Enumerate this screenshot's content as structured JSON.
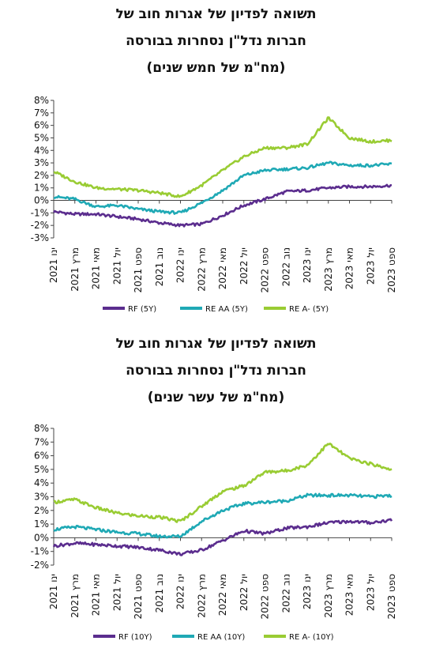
{
  "colors": {
    "rf": "#5b2d8e",
    "re_aa": "#1fa9b5",
    "re_a": "#99cc33"
  },
  "chart1_title": {
    "line1": "תשואה לפדיון של אגרות חוב של",
    "line2": "חברות נדל\"ן נסחרות בבורסה",
    "line3": "(מח\"מ של חמש שנים)"
  },
  "chart2_title": {
    "line1": "תשואה לפדיון של אגרות חוב של",
    "line2": "חברות נדל\"ן נסחרות בבורסה",
    "line3": "(מח\"מ של עשר שנים)"
  },
  "chart_data": [
    {
      "type": "line",
      "title": "תשואה לפדיון של אגרות חוב של חברות נדל\"ן נסחרות בבורסה (מח\"מ של חמש שנים)",
      "ylim": [
        -3,
        8
      ],
      "yticks": [
        "-3%",
        "-2%",
        "-1%",
        "0%",
        "1%",
        "2%",
        "3%",
        "4%",
        "5%",
        "6%",
        "7%",
        "8%"
      ],
      "categories": [
        "ינו 2021",
        "מרץ 2021",
        "מאי 2021",
        "יול 2021",
        "ספט 2021",
        "נוב 2021",
        "ינו 2022",
        "מרץ 2022",
        "מאי 2022",
        "יול 2022",
        "ספט 2022",
        "נוב 2022",
        "ינו 2023",
        "מרץ 2023",
        "מאי 2023",
        "יול 2023",
        "ספט 2023"
      ],
      "grid": false,
      "legend_position": "bottom",
      "series": [
        {
          "name": "RF (5Y)",
          "color": "#5b2d8e",
          "values": [
            -0.9,
            -1.1,
            -1.1,
            -1.3,
            -1.5,
            -1.8,
            -2.0,
            -1.9,
            -1.2,
            -0.4,
            0.1,
            0.7,
            0.8,
            1.0,
            1.1,
            1.1,
            1.2
          ]
        },
        {
          "name": "RE AA (5Y)",
          "color": "#1fa9b5",
          "values": [
            0.3,
            0.1,
            -0.5,
            -0.4,
            -0.7,
            -0.9,
            -1.0,
            -0.2,
            0.8,
            2.0,
            2.4,
            2.5,
            2.6,
            3.0,
            2.8,
            2.8,
            2.9
          ]
        },
        {
          "name": "RE A- (5Y)",
          "color": "#99cc33",
          "values": [
            2.3,
            1.5,
            1.0,
            0.9,
            0.8,
            0.6,
            0.3,
            1.2,
            2.4,
            3.5,
            4.2,
            4.2,
            4.5,
            6.6,
            5.0,
            4.7,
            4.8
          ]
        }
      ]
    },
    {
      "type": "line",
      "title": "תשואה לפדיון של אגרות חוב של חברות נדל\"ן נסחרות בבורסה (מח\"מ של עשר שנים)",
      "ylim": [
        -2,
        8
      ],
      "yticks": [
        "-2%",
        "-1%",
        "0%",
        "1%",
        "2%",
        "3%",
        "4%",
        "5%",
        "6%",
        "7%",
        "8%"
      ],
      "categories": [
        "ינו 2021",
        "מרץ 2021",
        "מאי 2021",
        "יול 2021",
        "ספט 2021",
        "נוב 2021",
        "ינו 2022",
        "מרץ 2022",
        "מאי 2022",
        "יול 2022",
        "ספט 2022",
        "נוב 2022",
        "ינו 2023",
        "מרץ 2023",
        "מאי 2023",
        "יול 2023",
        "ספט 2023"
      ],
      "grid": false,
      "legend_position": "bottom",
      "series": [
        {
          "name": "RF (10Y)",
          "color": "#5b2d8e",
          "values": [
            -0.6,
            -0.4,
            -0.5,
            -0.6,
            -0.7,
            -0.9,
            -1.2,
            -0.9,
            -0.2,
            0.5,
            0.3,
            0.7,
            0.8,
            1.1,
            1.2,
            1.1,
            1.3
          ]
        },
        {
          "name": "RE AA (10Y)",
          "color": "#1fa9b5",
          "values": [
            0.6,
            0.8,
            0.6,
            0.4,
            0.3,
            0.1,
            0.1,
            1.2,
            2.0,
            2.5,
            2.6,
            2.7,
            3.1,
            3.1,
            3.1,
            3.0,
            3.1
          ]
        },
        {
          "name": "RE A- (10Y)",
          "color": "#99cc33",
          "values": [
            2.6,
            2.8,
            2.2,
            1.8,
            1.6,
            1.5,
            1.2,
            2.3,
            3.4,
            3.8,
            4.8,
            4.9,
            5.3,
            6.9,
            5.8,
            5.4,
            5.0
          ]
        }
      ]
    }
  ]
}
